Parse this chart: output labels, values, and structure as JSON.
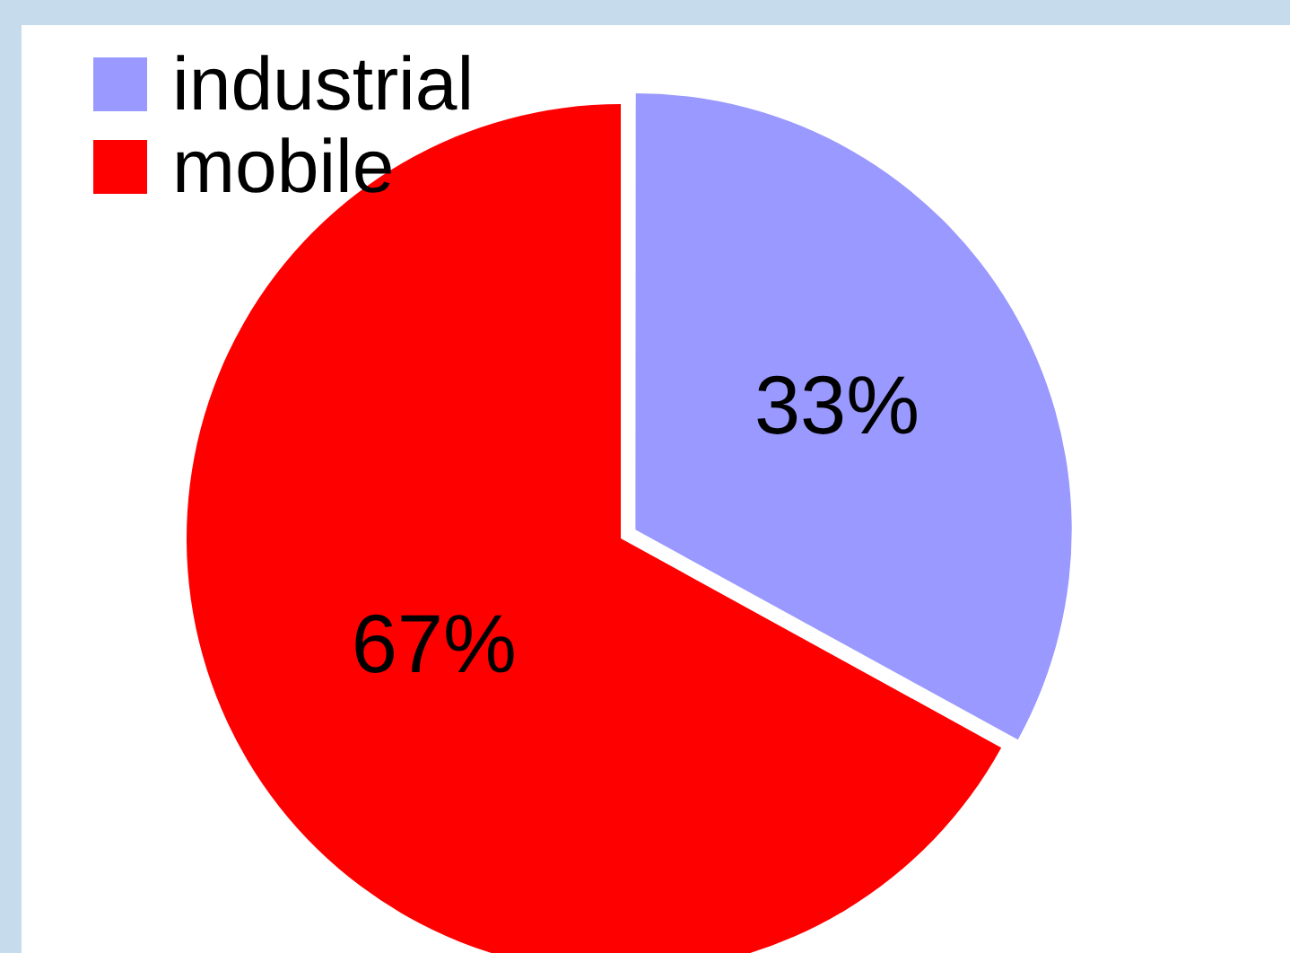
{
  "chart_data": {
    "type": "pie",
    "categories": [
      "industrial",
      "mobile"
    ],
    "values": [
      33,
      67
    ],
    "colors": [
      "#9999ff",
      "#ff0000"
    ],
    "value_labels": [
      "33%",
      "67%"
    ],
    "legend": "top left"
  }
}
